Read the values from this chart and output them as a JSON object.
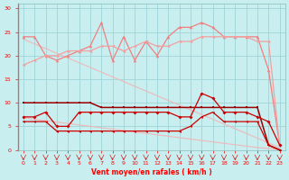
{
  "x": [
    0,
    1,
    2,
    3,
    4,
    5,
    6,
    7,
    8,
    9,
    10,
    11,
    12,
    13,
    14,
    15,
    16,
    17,
    18,
    19,
    20,
    21,
    22,
    23
  ],
  "line_rafales": [
    24,
    24,
    20,
    19,
    20,
    21,
    22,
    27,
    19,
    24,
    19,
    23,
    20,
    24,
    26,
    26,
    27,
    26,
    24,
    24,
    24,
    24,
    17,
    1
  ],
  "line_moyen": [
    18,
    19,
    20,
    20,
    21,
    21,
    21,
    22,
    22,
    21,
    22,
    23,
    22,
    22,
    23,
    23,
    24,
    24,
    24,
    24,
    24,
    23,
    23,
    1
  ],
  "line_trend_high": [
    23.5,
    22.5,
    21.5,
    20.5,
    19.5,
    18.5,
    17.5,
    16.5,
    15.5,
    14.5,
    13.5,
    12.5,
    11.5,
    10.5,
    9.5,
    8.5,
    7.5,
    6.5,
    5.5,
    4.5,
    3.5,
    2.5,
    1.5,
    0.5
  ],
  "line_dark_red": [
    10,
    10,
    10,
    10,
    10,
    10,
    10,
    9,
    9,
    9,
    9,
    9,
    9,
    9,
    9,
    9,
    9,
    9,
    9,
    9,
    9,
    9,
    1,
    0
  ],
  "line_mid_red": [
    7,
    7,
    8,
    5,
    5,
    8,
    8,
    8,
    8,
    8,
    8,
    8,
    8,
    8,
    7,
    7,
    12,
    11,
    8,
    8,
    8,
    7,
    6,
    1
  ],
  "line_low_red": [
    6,
    6,
    6,
    4,
    4,
    4,
    4,
    4,
    4,
    4,
    4,
    4,
    4,
    4,
    4,
    5,
    7,
    8,
    6,
    6,
    6,
    6,
    1,
    0
  ],
  "line_trend_low": [
    6.8,
    6.5,
    6.2,
    5.9,
    5.6,
    5.3,
    5.0,
    4.7,
    4.4,
    4.1,
    3.8,
    3.5,
    3.2,
    2.9,
    2.6,
    2.3,
    2.0,
    1.7,
    1.4,
    1.1,
    0.8,
    0.5,
    0.3,
    0.0
  ],
  "color_light_pink": "#f08080",
  "color_moyen_pink": "#f4a0a0",
  "color_trend_pink": "#f0b8b8",
  "color_red": "#cc0000",
  "color_dark_red": "#990000",
  "bg_color": "#c8eef0",
  "grid_color": "#9dd4d8",
  "xlabel": "Vent moyen/en rafales ( km/h )",
  "ylim": [
    0,
    31
  ],
  "xlim": [
    -0.5,
    23.5
  ],
  "yticks": [
    0,
    5,
    10,
    15,
    20,
    25,
    30
  ],
  "xticks": [
    0,
    1,
    2,
    3,
    4,
    5,
    6,
    7,
    8,
    9,
    10,
    11,
    12,
    13,
    14,
    15,
    16,
    17,
    18,
    19,
    20,
    21,
    22,
    23
  ]
}
